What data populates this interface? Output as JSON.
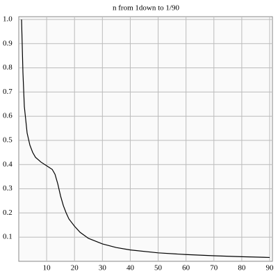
{
  "chart_data": {
    "type": "line",
    "title": "n from 1down to 1/90",
    "x": [
      1,
      1.5,
      2,
      3,
      4,
      5,
      6,
      8,
      10,
      12,
      13,
      14,
      15,
      16,
      17,
      18,
      20,
      22,
      25,
      30,
      35,
      40,
      50,
      60,
      70,
      80,
      90
    ],
    "values": [
      1.0,
      0.78,
      0.64,
      0.53,
      0.48,
      0.45,
      0.43,
      0.41,
      0.395,
      0.38,
      0.36,
      0.32,
      0.27,
      0.23,
      0.2,
      0.175,
      0.145,
      0.12,
      0.095,
      0.072,
      0.057,
      0.047,
      0.035,
      0.028,
      0.023,
      0.019,
      0.016
    ],
    "color": "#000000",
    "xlim": [
      0,
      91
    ],
    "xticks": [
      10,
      20,
      30,
      40,
      50,
      60,
      70,
      80,
      90
    ],
    "ylim": [
      0,
      1.0
    ],
    "yticks": [
      0.1,
      0.2,
      0.3,
      0.4,
      0.5,
      0.6,
      0.7,
      0.8,
      0.9,
      {
        "value": 1.0,
        "label": "1.0"
      }
    ],
    "grid": true
  }
}
